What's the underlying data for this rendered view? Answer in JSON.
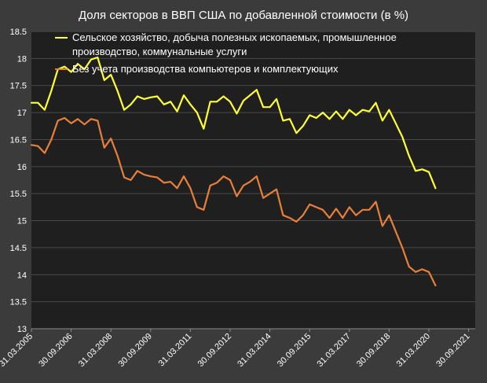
{
  "chart_data": {
    "type": "line",
    "title": "Доля секторов в ВВП США по добавленной стоимости (в %)",
    "xlabel": "",
    "ylabel": "",
    "ylim": [
      13,
      18.5
    ],
    "y_ticks": [
      "13",
      "13.5",
      "14",
      "14.5",
      "15",
      "15.5",
      "16",
      "16.5",
      "17",
      "17.5",
      "18",
      "18.5"
    ],
    "x_range": [
      0,
      67
    ],
    "x_ticks": [
      {
        "i": 0,
        "label": "31.03.2005"
      },
      {
        "i": 6,
        "label": "30.09.2006"
      },
      {
        "i": 12,
        "label": "31.03.2008"
      },
      {
        "i": 18,
        "label": "30.09.2009"
      },
      {
        "i": 24,
        "label": "31.03.2011"
      },
      {
        "i": 30,
        "label": "30.09.2012"
      },
      {
        "i": 36,
        "label": "31.03.2014"
      },
      {
        "i": 42,
        "label": "30.09.2015"
      },
      {
        "i": 48,
        "label": "31.03.2017"
      },
      {
        "i": 54,
        "label": "30.09.2018"
      },
      {
        "i": 60,
        "label": "31.03.2020"
      },
      {
        "i": 66,
        "label": "30.09.2021"
      }
    ],
    "grid": true,
    "legend": "top-left",
    "series": [
      {
        "name": "Сельское хозяйство, добыча полезных ископаемых, промышленное производство, коммунальные услуги",
        "legend_lines": [
          "Сельское хозяйство, добыча полезных ископаемых, промышленное",
          "производство, коммунальные услуги"
        ],
        "color": "#ffff33",
        "values": [
          17.18,
          17.18,
          17.05,
          17.4,
          17.8,
          17.85,
          17.75,
          17.9,
          17.8,
          17.98,
          18.02,
          17.6,
          17.7,
          17.4,
          17.05,
          17.15,
          17.3,
          17.25,
          17.28,
          17.3,
          17.15,
          17.2,
          17.02,
          17.32,
          17.15,
          17.0,
          16.7,
          17.2,
          17.2,
          17.3,
          17.2,
          16.98,
          17.22,
          17.32,
          17.42,
          17.1,
          17.1,
          17.25,
          16.85,
          16.88,
          16.62,
          16.75,
          16.95,
          16.9,
          17.0,
          16.88,
          17.02,
          16.88,
          17.05,
          16.95,
          17.05,
          17.02,
          17.18,
          16.85,
          17.05,
          16.8,
          16.55,
          16.2,
          15.92,
          15.95,
          15.9,
          15.6
        ]
      },
      {
        "name": "Без учета производства компьютеров и комплектующих",
        "legend_lines": [
          "Без учета производства компьютеров и комплектующих"
        ],
        "color": "#e8803a",
        "values": [
          16.4,
          16.38,
          16.25,
          16.5,
          16.85,
          16.9,
          16.8,
          16.88,
          16.78,
          16.88,
          16.85,
          16.35,
          16.52,
          16.2,
          15.8,
          15.75,
          15.92,
          15.85,
          15.82,
          15.8,
          15.7,
          15.72,
          15.6,
          15.82,
          15.6,
          15.25,
          15.2,
          15.65,
          15.7,
          15.82,
          15.75,
          15.45,
          15.65,
          15.72,
          15.82,
          15.42,
          15.5,
          15.58,
          15.1,
          15.05,
          14.98,
          15.1,
          15.3,
          15.25,
          15.2,
          15.05,
          15.22,
          15.05,
          15.25,
          15.1,
          15.2,
          15.2,
          15.35,
          14.9,
          15.1,
          14.8,
          14.5,
          14.15,
          14.05,
          14.1,
          14.05,
          13.8
        ]
      }
    ]
  }
}
